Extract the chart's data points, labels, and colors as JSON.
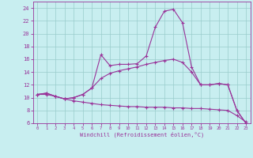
{
  "xlabel": "Windchill (Refroidissement éolien,°C)",
  "bg_color": "#c8eef0",
  "line_color": "#993399",
  "grid_color": "#99cccc",
  "xlim": [
    -0.5,
    23.5
  ],
  "ylim": [
    6,
    25
  ],
  "yticks": [
    6,
    8,
    10,
    12,
    14,
    16,
    18,
    20,
    22,
    24
  ],
  "xticks": [
    0,
    1,
    2,
    3,
    4,
    5,
    6,
    7,
    8,
    9,
    10,
    11,
    12,
    13,
    14,
    15,
    16,
    17,
    18,
    19,
    20,
    21,
    22,
    23
  ],
  "curve1_x": [
    0,
    1,
    2,
    3,
    4,
    5,
    6,
    7,
    8,
    9,
    10,
    11,
    12,
    13,
    14,
    15,
    16,
    17,
    18,
    19,
    20,
    21,
    22,
    23
  ],
  "curve1_y": [
    10.5,
    10.7,
    10.2,
    9.8,
    10.0,
    10.5,
    11.5,
    16.7,
    15.0,
    15.2,
    15.2,
    15.3,
    16.5,
    21.0,
    23.5,
    23.8,
    21.7,
    14.8,
    12.0,
    12.0,
    12.2,
    12.0,
    8.0,
    6.0
  ],
  "curve2_x": [
    0,
    1,
    2,
    3,
    4,
    5,
    6,
    7,
    8,
    9,
    10,
    11,
    12,
    13,
    14,
    15,
    16,
    17,
    18,
    19,
    20,
    21,
    22,
    23
  ],
  "curve2_y": [
    10.5,
    10.7,
    10.2,
    9.8,
    10.0,
    10.5,
    11.5,
    13.0,
    13.8,
    14.2,
    14.5,
    14.8,
    15.2,
    15.5,
    15.8,
    16.0,
    15.5,
    14.0,
    12.0,
    12.0,
    12.2,
    12.0,
    8.0,
    6.0
  ],
  "curve3_x": [
    0,
    1,
    2,
    3,
    4,
    5,
    6,
    7,
    8,
    9,
    10,
    11,
    12,
    13,
    14,
    15,
    16,
    17,
    18,
    19,
    20,
    21,
    22,
    23
  ],
  "curve3_y": [
    10.5,
    10.5,
    10.2,
    9.8,
    9.5,
    9.3,
    9.1,
    8.9,
    8.8,
    8.7,
    8.6,
    8.6,
    8.5,
    8.5,
    8.5,
    8.4,
    8.4,
    8.3,
    8.3,
    8.2,
    8.1,
    8.0,
    7.2,
    6.2
  ]
}
